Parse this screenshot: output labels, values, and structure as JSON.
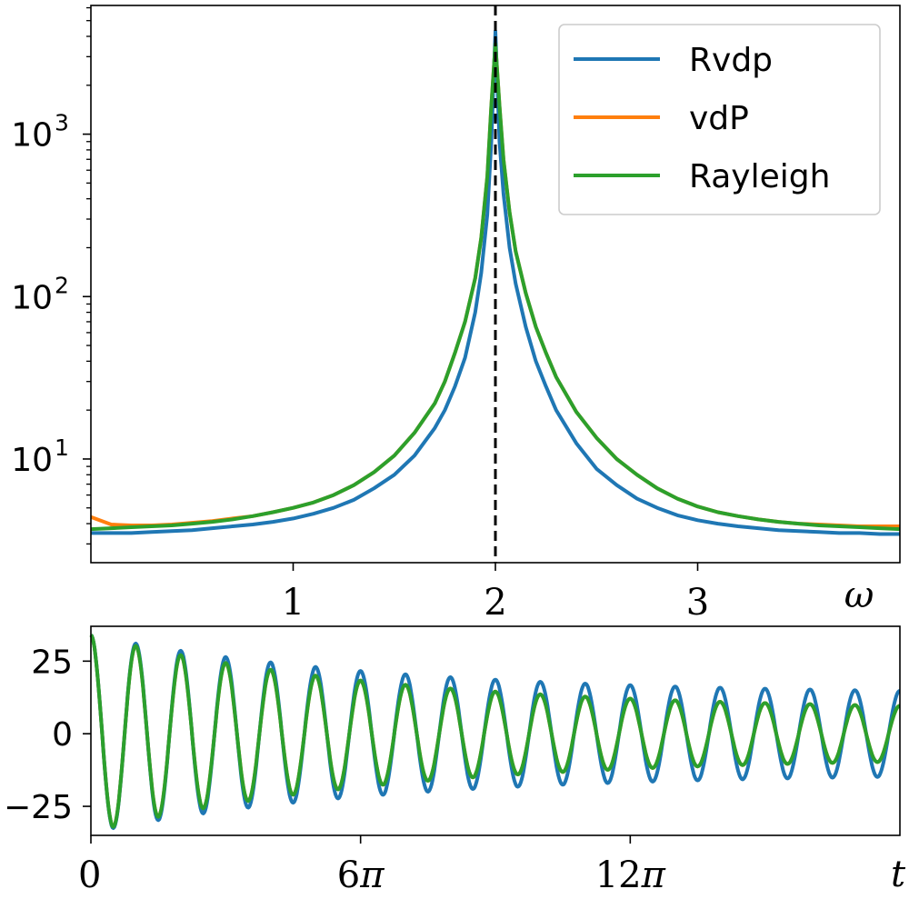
{
  "chart_data": [
    {
      "type": "line",
      "yscale": "log",
      "xlim": [
        0,
        4
      ],
      "ylim": [
        2.3,
        6200
      ],
      "xticks": [
        1,
        2,
        3
      ],
      "xtick_labels": [
        "1",
        "2",
        "3"
      ],
      "xlabel": "ω",
      "ylabel": "",
      "yticks": [
        {
          "value": 10,
          "base": "10",
          "exp": "1"
        },
        {
          "value": 100,
          "base": "10",
          "exp": "2"
        },
        {
          "value": 1000,
          "base": "10",
          "exp": "3"
        }
      ],
      "vline": {
        "x": 2,
        "style": "dashed",
        "color": "#000000"
      },
      "legend": {
        "position": "top-right"
      },
      "x": [
        0,
        0.1,
        0.2,
        0.3,
        0.4,
        0.5,
        0.6,
        0.7,
        0.8,
        0.9,
        1.0,
        1.1,
        1.2,
        1.3,
        1.4,
        1.5,
        1.6,
        1.7,
        1.75,
        1.8,
        1.85,
        1.9,
        1.93,
        1.96,
        1.98,
        2.0,
        2.02,
        2.04,
        2.07,
        2.1,
        2.15,
        2.2,
        2.25,
        2.3,
        2.4,
        2.5,
        2.6,
        2.7,
        2.8,
        2.9,
        3.0,
        3.1,
        3.2,
        3.3,
        3.4,
        3.5,
        3.6,
        3.7,
        3.8,
        3.9,
        4.0
      ],
      "series": [
        {
          "name": "Rvdp",
          "color": "#1f77b4",
          "values": [
            3.5,
            3.5,
            3.5,
            3.55,
            3.6,
            3.65,
            3.75,
            3.85,
            3.95,
            4.1,
            4.3,
            4.6,
            5.0,
            5.6,
            6.6,
            8.0,
            10.5,
            15.5,
            20,
            28,
            42,
            80,
            140,
            320,
            900,
            4300,
            900,
            430,
            200,
            120,
            65,
            40,
            28,
            20,
            12.5,
            8.7,
            6.9,
            5.7,
            5.0,
            4.5,
            4.2,
            4.0,
            3.85,
            3.75,
            3.65,
            3.6,
            3.55,
            3.5,
            3.5,
            3.45,
            3.45
          ]
        },
        {
          "name": "vdP",
          "color": "#ff7f0e",
          "values": [
            4.4,
            3.95,
            3.9,
            3.9,
            3.95,
            4.05,
            4.15,
            4.3,
            4.45,
            4.7,
            5.0,
            5.4,
            6.0,
            6.9,
            8.3,
            10.5,
            14.5,
            22,
            30,
            45,
            70,
            130,
            230,
            550,
            1500,
            3600,
            1500,
            700,
            330,
            190,
            105,
            65,
            45,
            32,
            19.5,
            13.5,
            10,
            8,
            6.6,
            5.7,
            5.1,
            4.7,
            4.45,
            4.25,
            4.1,
            4.0,
            3.95,
            3.9,
            3.85,
            3.85,
            3.85
          ]
        },
        {
          "name": "Rayleigh",
          "color": "#2ca02c",
          "values": [
            3.7,
            3.75,
            3.8,
            3.85,
            3.9,
            4.0,
            4.1,
            4.25,
            4.45,
            4.7,
            5.0,
            5.4,
            6.0,
            6.9,
            8.3,
            10.5,
            14.5,
            22,
            30,
            45,
            70,
            130,
            230,
            550,
            1500,
            3600,
            1500,
            700,
            330,
            190,
            105,
            65,
            45,
            32,
            19.5,
            13.5,
            10,
            8,
            6.6,
            5.7,
            5.1,
            4.7,
            4.45,
            4.25,
            4.1,
            4.0,
            3.9,
            3.85,
            3.8,
            3.75,
            3.7
          ]
        }
      ]
    },
    {
      "type": "line",
      "xlim": [
        0,
        18
      ],
      "ylim": [
        -35,
        37
      ],
      "xticks": [
        0,
        6,
        12
      ],
      "xtick_labels": [
        "0",
        "6π",
        "12π"
      ],
      "xlabel": "t",
      "ylabel": "",
      "yticks": [
        25,
        0,
        -25
      ],
      "ytick_labels": [
        "25",
        "0",
        "−25"
      ],
      "x_unit": "π",
      "series": [
        {
          "name": "Rvdp",
          "color": "#1f77b4",
          "initial_amplitude": 34,
          "envelope_floor": 13.5,
          "period": 1.0,
          "phase": 0
        },
        {
          "name": "vdP",
          "color": "#ff7f0e",
          "initial_amplitude": 34,
          "envelope_floor": 8,
          "period": 1.0,
          "phase": 0
        },
        {
          "name": "Rayleigh",
          "color": "#2ca02c",
          "initial_amplitude": 34,
          "envelope_floor": 8,
          "period": 1.0,
          "phase": 0
        }
      ]
    }
  ]
}
